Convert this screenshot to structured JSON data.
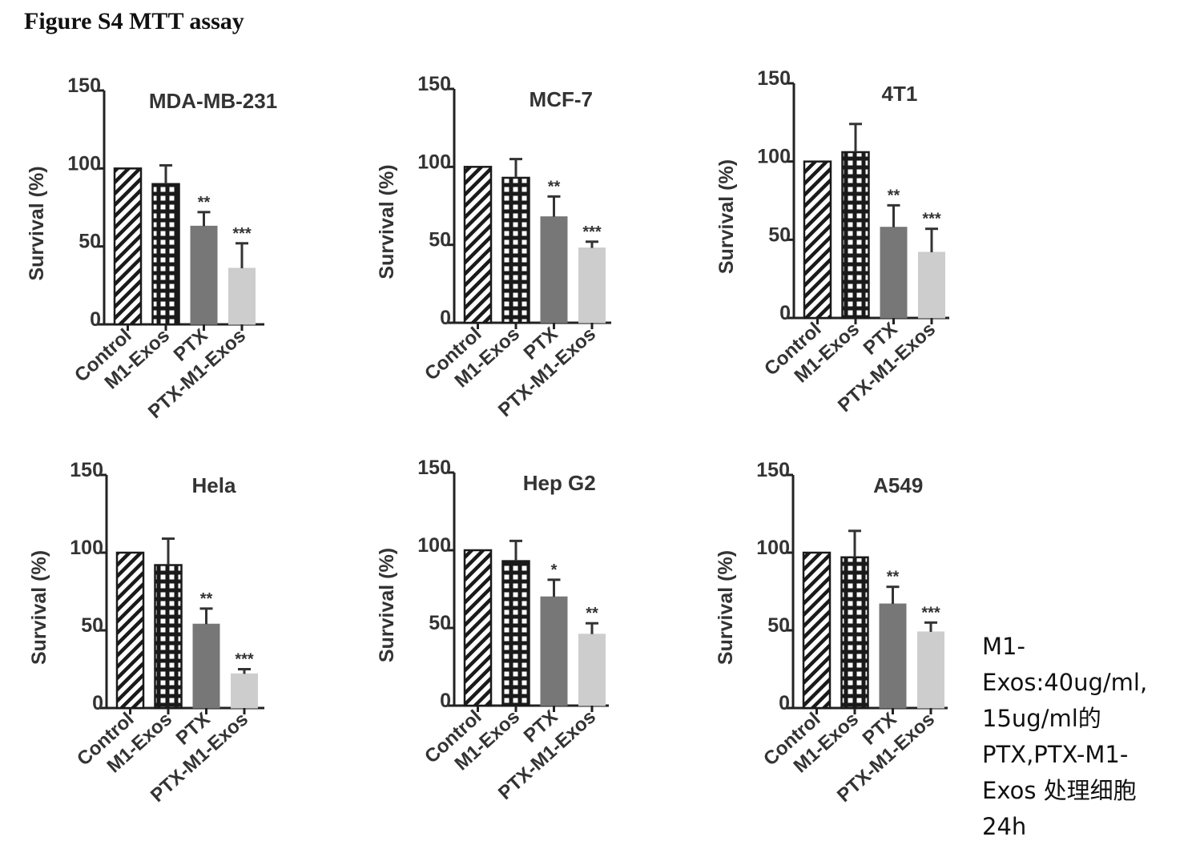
{
  "figure_title": "Figure S4 MTT assay",
  "side_note": [
    "M1-",
    "Exos:40ug/ml,",
    "15ug/ml的",
    "PTX,PTX-M1-",
    "Exos  处理细胞",
    "24h"
  ],
  "colors": {
    "axis": "#222222",
    "ptx": "#777777",
    "ptx_m1": "#cdcdcd",
    "pattern": "#1a1a1a"
  },
  "chart_data": [
    {
      "type": "bar",
      "title": "MDA-MB-231",
      "ylabel": "Survival (%)",
      "ylim": [
        0,
        150
      ],
      "yticks": [
        0,
        50,
        100,
        150
      ],
      "categories": [
        "Control",
        "M1-Exos",
        "PTX",
        "PTX-M1-Exos"
      ],
      "values": [
        100,
        90,
        63,
        36
      ],
      "errors": [
        0,
        12,
        9,
        16
      ],
      "significance": [
        "",
        "",
        "**",
        "***"
      ]
    },
    {
      "type": "bar",
      "title": "MCF-7",
      "ylabel": "Survival (%)",
      "ylim": [
        0,
        150
      ],
      "yticks": [
        0,
        50,
        100,
        150
      ],
      "categories": [
        "Control",
        "M1-Exos",
        "PTX",
        "PTX-M1-Exos"
      ],
      "values": [
        100,
        93,
        68,
        48
      ],
      "errors": [
        0,
        12,
        13,
        4
      ],
      "significance": [
        "",
        "",
        "**",
        "***"
      ]
    },
    {
      "type": "bar",
      "title": "4T1",
      "ylabel": "Survival (%)",
      "ylim": [
        0,
        150
      ],
      "yticks": [
        0,
        50,
        100,
        150
      ],
      "categories": [
        "Control",
        "M1-Exos",
        "PTX",
        "PTX-M1-Exos"
      ],
      "values": [
        100,
        106,
        58,
        42
      ],
      "errors": [
        0,
        18,
        14,
        15
      ],
      "significance": [
        "",
        "",
        "**",
        "***"
      ]
    },
    {
      "type": "bar",
      "title": "Hela",
      "ylabel": "Survival (%)",
      "ylim": [
        0,
        150
      ],
      "yticks": [
        0,
        50,
        100,
        150
      ],
      "categories": [
        "Control",
        "M1-Exos",
        "PTX",
        "PTX-M1-Exos"
      ],
      "values": [
        100,
        92,
        54,
        22
      ],
      "errors": [
        0,
        17,
        10,
        3
      ],
      "significance": [
        "",
        "",
        "**",
        "***"
      ]
    },
    {
      "type": "bar",
      "title": "Hep G2",
      "ylabel": "Survival (%)",
      "ylim": [
        0,
        150
      ],
      "yticks": [
        0,
        50,
        100,
        150
      ],
      "categories": [
        "Control",
        "M1-Exos",
        "PTX",
        "PTX-M1-Exos"
      ],
      "values": [
        100,
        93,
        70,
        46
      ],
      "errors": [
        0,
        13,
        11,
        7
      ],
      "significance": [
        "",
        "",
        "*",
        "**"
      ]
    },
    {
      "type": "bar",
      "title": "A549",
      "ylabel": "Survival (%)",
      "ylim": [
        0,
        150
      ],
      "yticks": [
        0,
        50,
        100,
        150
      ],
      "categories": [
        "Control",
        "M1-Exos",
        "PTX",
        "PTX-M1-Exos"
      ],
      "values": [
        100,
        97,
        67,
        49
      ],
      "errors": [
        0,
        17,
        11,
        6
      ],
      "significance": [
        "",
        "",
        "**",
        "***"
      ]
    }
  ]
}
